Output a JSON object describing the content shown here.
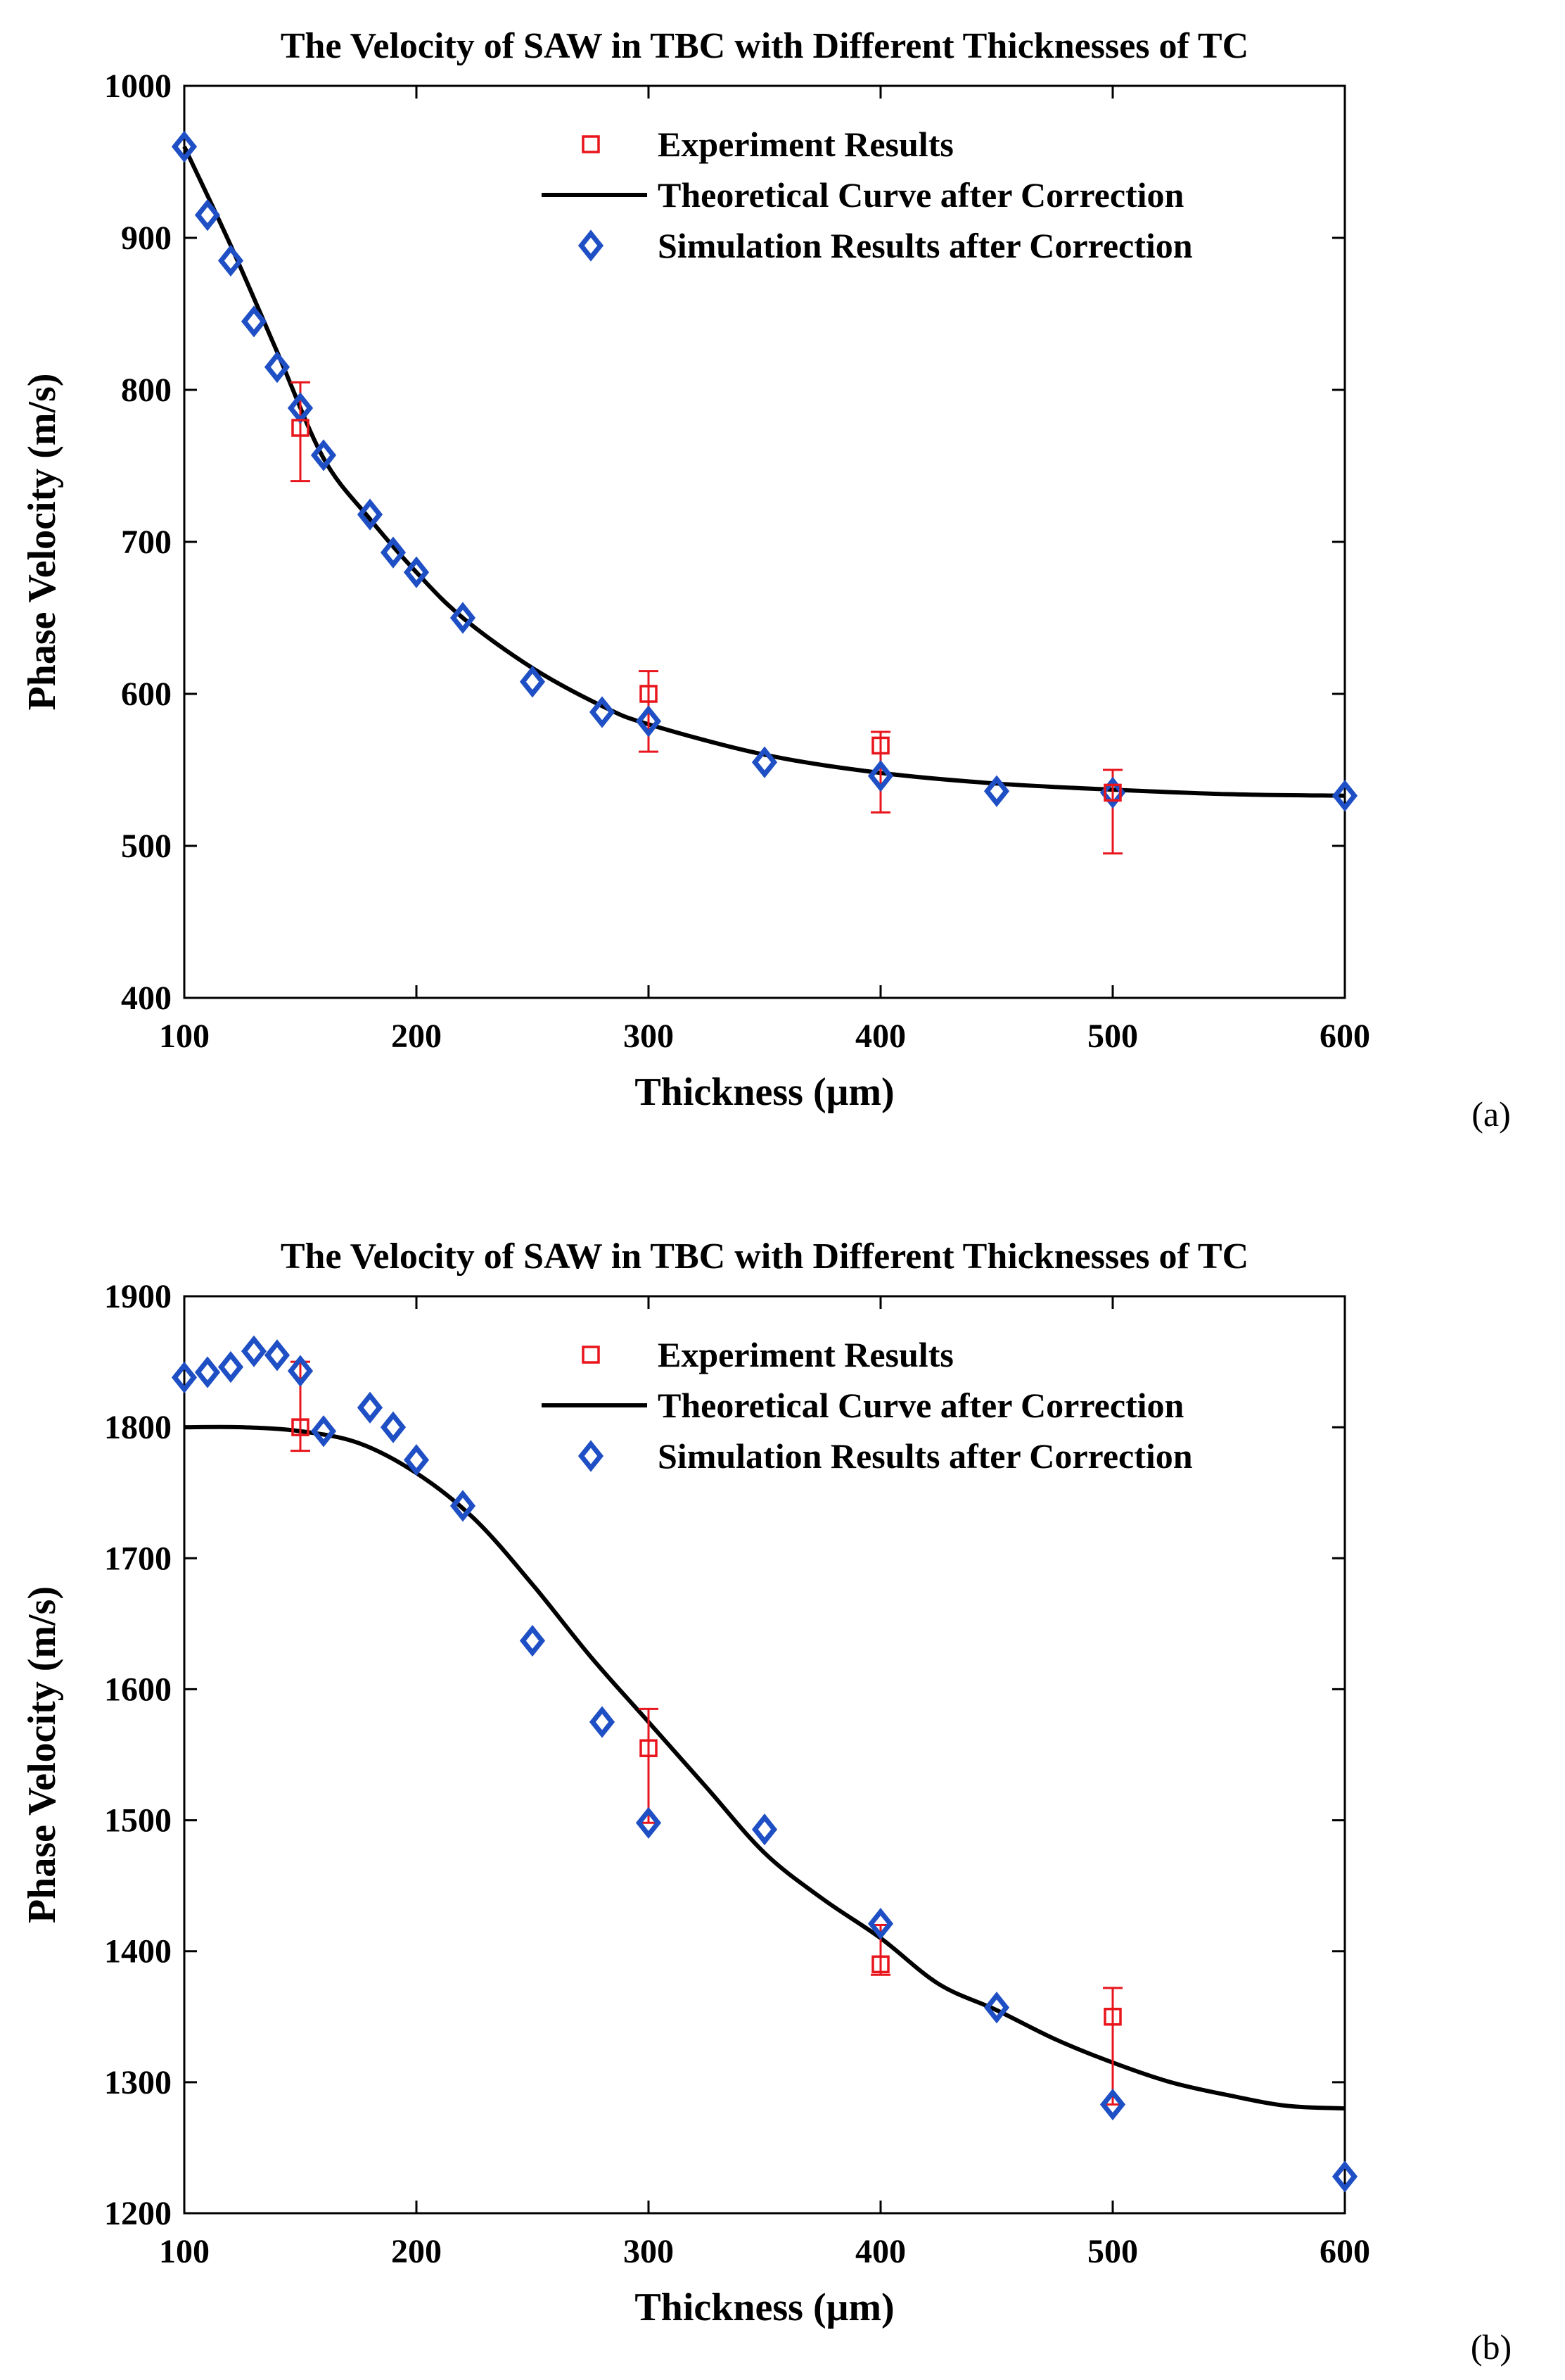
{
  "chart_data": [
    {
      "type": "line",
      "panel_label": "(a)",
      "title": "The Velocity of SAW in TBC with Different Thicknesses of TC",
      "xlabel": "Thickness (μm)",
      "ylabel": "Phase Velocity (m/s)",
      "xlim": [
        100,
        600
      ],
      "ylim": [
        400,
        1000
      ],
      "xticks": [
        100,
        200,
        300,
        400,
        500,
        600
      ],
      "yticks": [
        400,
        500,
        600,
        700,
        800,
        900,
        1000
      ],
      "legend_position": "top-right",
      "grid": false,
      "series": [
        {
          "name": "Experiment Results",
          "kind": "errorbar",
          "color": "#e8151c",
          "marker": "square",
          "x": [
            150,
            300,
            400,
            500
          ],
          "y": [
            775,
            600,
            566,
            535
          ],
          "err_low": [
            740,
            562,
            522,
            495
          ],
          "err_high": [
            805,
            615,
            575,
            550
          ]
        },
        {
          "name": "Theoretical Curve after Correction",
          "kind": "line",
          "color": "#000000",
          "x": [
            100,
            120,
            140,
            160,
            180,
            200,
            220,
            250,
            280,
            300,
            350,
            400,
            450,
            500,
            550,
            600
          ],
          "y": [
            960,
            895,
            825,
            755,
            715,
            680,
            650,
            617,
            592,
            580,
            560,
            548,
            541,
            537,
            534,
            533
          ]
        },
        {
          "name": "Simulation Results after Correction",
          "kind": "scatter",
          "color": "#1f4fc4",
          "marker": "diamond",
          "x": [
            100,
            110,
            120,
            130,
            140,
            150,
            160,
            180,
            190,
            200,
            220,
            250,
            280,
            300,
            350,
            400,
            450,
            500,
            600
          ],
          "y": [
            960,
            915,
            885,
            845,
            815,
            788,
            757,
            718,
            693,
            680,
            650,
            608,
            588,
            582,
            555,
            546,
            536,
            535,
            533
          ]
        }
      ]
    },
    {
      "type": "line",
      "panel_label": "(b)",
      "title": "The Velocity of SAW in TBC with Different Thicknesses of TC",
      "xlabel": "Thickness (μm)",
      "ylabel": "Phase Velocity (m/s)",
      "xlim": [
        100,
        600
      ],
      "ylim": [
        1200,
        1900
      ],
      "xticks": [
        100,
        200,
        300,
        400,
        500,
        600
      ],
      "yticks": [
        1200,
        1300,
        1400,
        1500,
        1600,
        1700,
        1800,
        1900
      ],
      "legend_position": "top-right",
      "grid": false,
      "series": [
        {
          "name": "Experiment Results",
          "kind": "errorbar",
          "color": "#e8151c",
          "marker": "square",
          "x": [
            150,
            300,
            400,
            500
          ],
          "y": [
            1800,
            1555,
            1390,
            1350
          ],
          "err_low": [
            1782,
            1498,
            1382,
            1283
          ],
          "err_high": [
            1850,
            1585,
            1420,
            1372
          ]
        },
        {
          "name": "Theoretical Curve after Correction",
          "kind": "line",
          "color": "#000000",
          "x": [
            100,
            125,
            150,
            175,
            200,
            225,
            250,
            275,
            300,
            325,
            350,
            375,
            400,
            425,
            450,
            475,
            500,
            525,
            550,
            575,
            600
          ],
          "y": [
            1800,
            1800,
            1797,
            1788,
            1765,
            1730,
            1680,
            1625,
            1575,
            1525,
            1475,
            1440,
            1410,
            1375,
            1355,
            1333,
            1315,
            1300,
            1290,
            1282,
            1280
          ]
        },
        {
          "name": "Simulation Results after Correction",
          "kind": "scatter",
          "color": "#1f4fc4",
          "marker": "diamond",
          "x": [
            100,
            110,
            120,
            130,
            140,
            150,
            160,
            180,
            190,
            200,
            220,
            250,
            280,
            300,
            350,
            400,
            450,
            500,
            600
          ],
          "y": [
            1838,
            1842,
            1846,
            1858,
            1855,
            1843,
            1797,
            1815,
            1800,
            1775,
            1740,
            1637,
            1575,
            1498,
            1493,
            1421,
            1357,
            1283,
            1228
          ]
        }
      ]
    }
  ]
}
